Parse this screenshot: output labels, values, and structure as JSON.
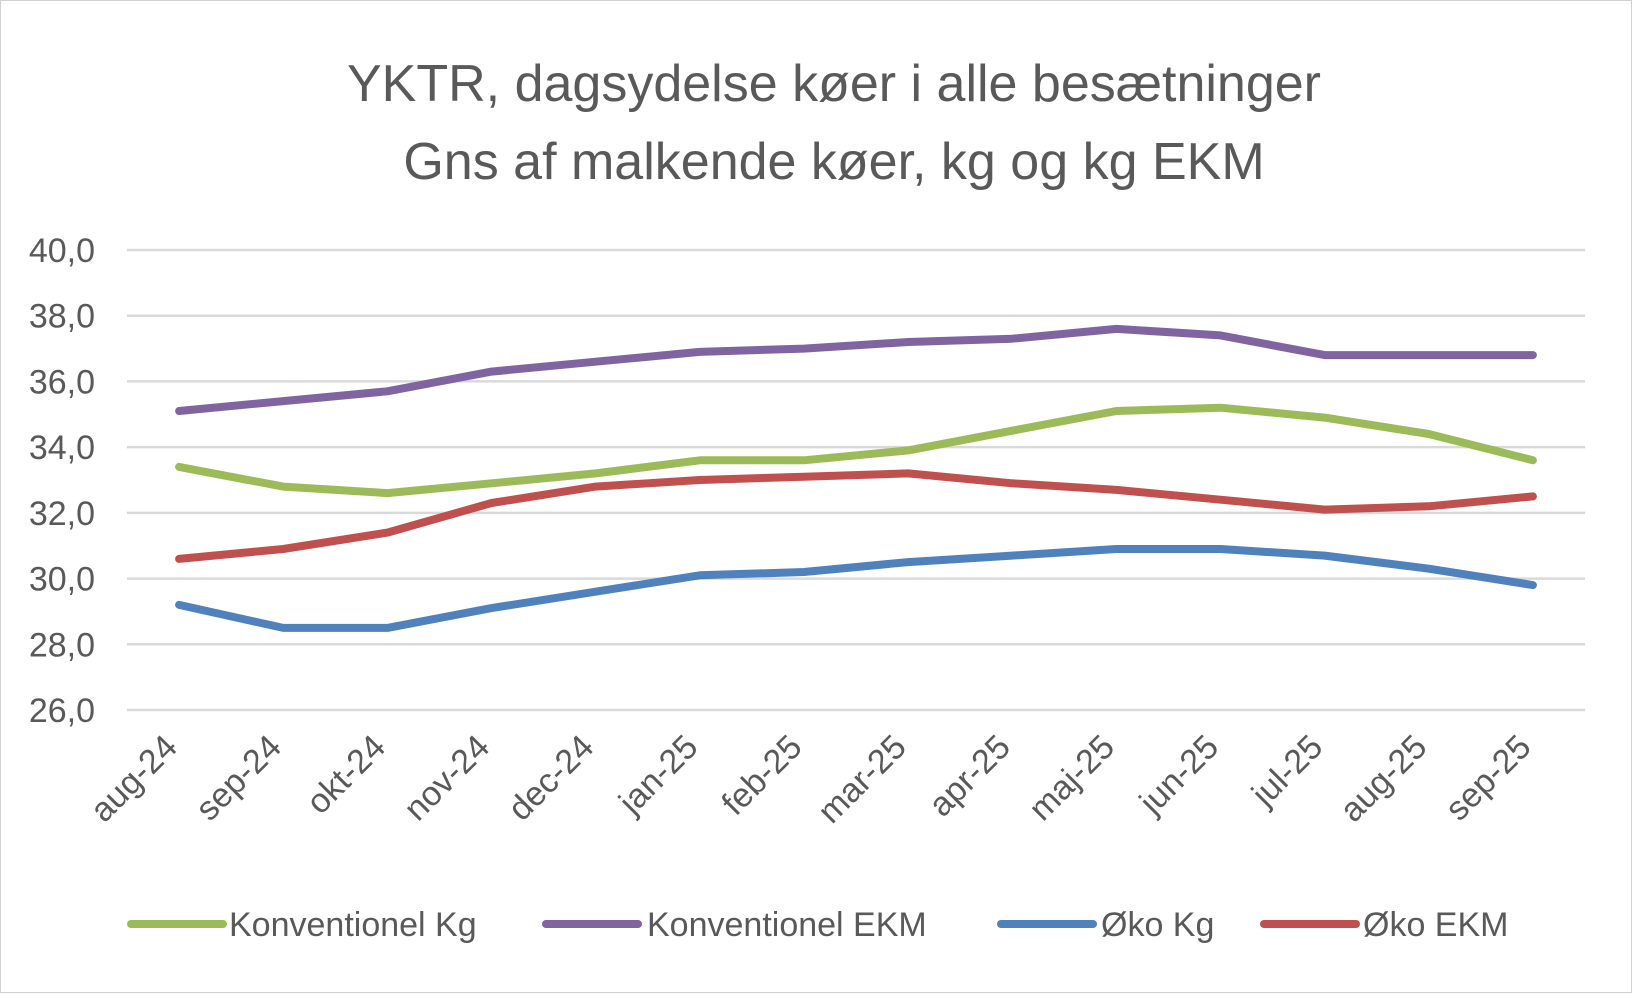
{
  "chart_data": {
    "type": "line",
    "title": [
      "YKTR, dagsydelse køer i alle besætninger",
      "Gns af malkende køer, kg og kg EKM"
    ],
    "categories": [
      "aug-24",
      "sep-24",
      "okt-24",
      "nov-24",
      "dec-24",
      "jan-25",
      "feb-25",
      "mar-25",
      "apr-25",
      "maj-25",
      "jun-25",
      "jul-25",
      "aug-25",
      "sep-25"
    ],
    "ylim": [
      26,
      40
    ],
    "yticks": [
      26,
      28,
      30,
      32,
      34,
      36,
      38,
      40
    ],
    "ytick_labels": [
      "26,0",
      "28,0",
      "30,0",
      "32,0",
      "34,0",
      "36,0",
      "38,0",
      "40,0"
    ],
    "grid": true,
    "legend_position": "bottom",
    "series": [
      {
        "name": "Konventionel Kg",
        "color": "#9bbb59",
        "values": [
          33.4,
          32.8,
          32.6,
          32.9,
          33.2,
          33.6,
          33.6,
          33.9,
          34.5,
          35.1,
          35.2,
          34.9,
          34.4,
          33.6
        ]
      },
      {
        "name": "Konventionel EKM",
        "color": "#8064a2",
        "values": [
          35.1,
          35.4,
          35.7,
          36.3,
          36.6,
          36.9,
          37.0,
          37.2,
          37.3,
          37.6,
          37.4,
          36.8,
          36.8,
          36.8
        ]
      },
      {
        "name": "Øko Kg",
        "color": "#4f81bd",
        "values": [
          29.2,
          28.5,
          28.5,
          29.1,
          29.6,
          30.1,
          30.2,
          30.5,
          30.7,
          30.9,
          30.9,
          30.7,
          30.3,
          29.8
        ]
      },
      {
        "name": "Øko EKM",
        "color": "#c0504d",
        "values": [
          30.6,
          30.9,
          31.4,
          32.3,
          32.8,
          33.0,
          33.1,
          33.2,
          32.9,
          32.7,
          32.4,
          32.1,
          32.2,
          32.5
        ]
      }
    ]
  }
}
